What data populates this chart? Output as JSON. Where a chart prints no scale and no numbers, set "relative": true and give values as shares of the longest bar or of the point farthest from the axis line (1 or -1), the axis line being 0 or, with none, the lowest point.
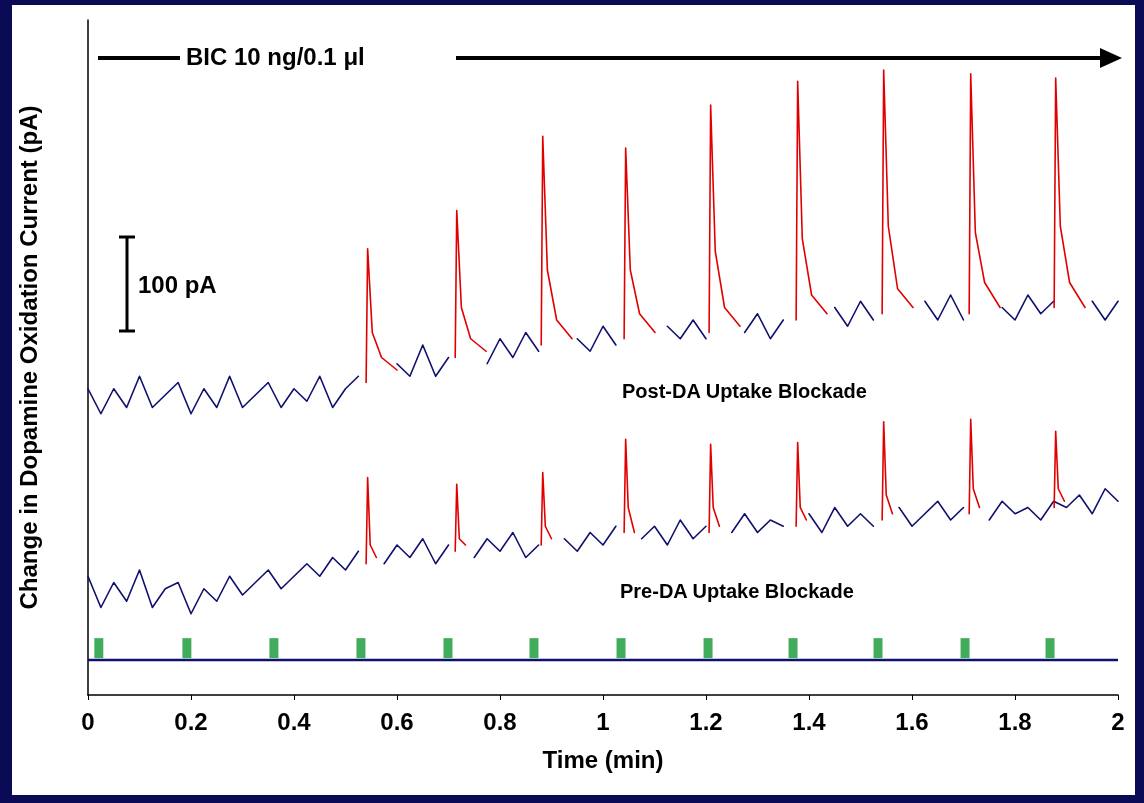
{
  "chart_data": {
    "type": "line",
    "relative": true,
    "xlabel": "Time (min)",
    "ylabel": "Change in Dopamine Oxidation Current (pA)",
    "xlim": [
      0,
      2
    ],
    "xticks": [
      0,
      0.2,
      0.4,
      0.6,
      0.8,
      1,
      1.2,
      1.4,
      1.6,
      1.8,
      2
    ],
    "marker": "none",
    "annotations": [
      "BIC 10 ng/0.1 μl",
      "100 pA"
    ],
    "ref_lines": [
      {
        "axis": "y",
        "value": 0.056,
        "color": "#10106e"
      }
    ],
    "x": [
      0,
      0.025,
      0.05,
      0.075,
      0.1,
      0.125,
      0.15,
      0.175,
      0.2,
      0.225,
      0.25,
      0.275,
      0.3,
      0.325,
      0.35,
      0.375,
      0.4,
      0.425,
      0.45,
      0.475,
      0.5,
      0.525,
      0.55,
      0.575,
      0.6,
      0.625,
      0.65,
      0.675,
      0.7,
      0.725,
      0.75,
      0.775,
      0.8,
      0.825,
      0.85,
      0.875,
      0.9,
      0.925,
      0.95,
      0.975,
      1,
      1.025,
      1.05,
      1.075,
      1.1,
      1.125,
      1.15,
      1.175,
      1.2,
      1.225,
      1.25,
      1.275,
      1.3,
      1.325,
      1.35,
      1.375,
      1.4,
      1.425,
      1.45,
      1.475,
      1.5,
      1.525,
      1.55,
      1.575,
      1.6,
      1.625,
      1.65,
      1.675,
      1.7,
      1.725,
      1.75,
      1.775,
      1.8,
      1.825,
      1.85,
      1.875,
      1.9,
      1.925,
      1.95,
      1.975,
      2
    ],
    "series": [
      {
        "name": "Post-DA Uptake Blockade",
        "color": "#10106e",
        "values": [
          0.49,
          0.45,
          0.49,
          0.46,
          0.51,
          0.46,
          0.48,
          0.5,
          0.45,
          0.49,
          0.46,
          0.51,
          0.46,
          0.48,
          0.5,
          0.46,
          0.49,
          0.47,
          0.51,
          0.46,
          0.49,
          0.51,
          null,
          null,
          0.53,
          0.51,
          0.56,
          0.51,
          0.54,
          null,
          null,
          0.53,
          0.57,
          0.54,
          0.58,
          0.55,
          null,
          null,
          0.57,
          0.55,
          0.59,
          0.56,
          null,
          null,
          null,
          0.59,
          0.57,
          0.6,
          0.57,
          null,
          null,
          0.58,
          0.61,
          0.57,
          0.6,
          null,
          null,
          null,
          0.62,
          0.59,
          0.63,
          0.6,
          null,
          null,
          null,
          0.63,
          0.6,
          0.64,
          0.6,
          null,
          null,
          0.62,
          0.6,
          0.64,
          0.61,
          0.63,
          null,
          null,
          0.63,
          0.6,
          0.63
        ]
      },
      {
        "color": "#e00000",
        "x": [
          0.54,
          0.543,
          0.552,
          0.57,
          0.6,
          0.62,
          0.713,
          0.716,
          0.725,
          0.743,
          0.773,
          0.79,
          0.88,
          0.883,
          0.892,
          0.91,
          0.94,
          0.96,
          1.041,
          1.044,
          1.053,
          1.071,
          1.101,
          1.12,
          1.206,
          1.209,
          1.218,
          1.236,
          1.266,
          1.285,
          1.375,
          1.378,
          1.387,
          1.405,
          1.435,
          1.455,
          1.542,
          1.545,
          1.554,
          1.572,
          1.602,
          1.62,
          1.711,
          1.714,
          1.723,
          1.741,
          1.771,
          1.79,
          1.876,
          1.879,
          1.888,
          1.906,
          1.936
        ],
        "values": [
          0.5,
          0.714,
          0.58,
          0.54,
          0.52,
          null,
          0.54,
          0.775,
          0.62,
          0.57,
          0.55,
          null,
          0.56,
          0.894,
          0.68,
          0.6,
          0.57,
          null,
          0.57,
          0.875,
          0.68,
          0.61,
          0.58,
          null,
          0.58,
          0.944,
          0.71,
          0.62,
          0.59,
          null,
          0.6,
          0.982,
          0.73,
          0.64,
          0.61,
          null,
          0.61,
          1,
          0.75,
          0.65,
          0.62,
          null,
          0.61,
          0.994,
          0.74,
          0.66,
          0.62,
          null,
          0.62,
          0.987,
          0.75,
          0.66,
          0.62
        ]
      },
      {
        "name": "Pre-DA Uptake Blockade",
        "color": "#10106e",
        "values": [
          0.19,
          0.14,
          0.18,
          0.15,
          0.2,
          0.14,
          0.17,
          0.18,
          0.13,
          0.17,
          0.15,
          0.19,
          0.16,
          0.18,
          0.2,
          0.17,
          0.19,
          0.21,
          0.19,
          0.22,
          0.2,
          0.23,
          null,
          0.21,
          0.24,
          0.22,
          0.25,
          0.21,
          0.24,
          null,
          0.22,
          0.25,
          0.23,
          0.26,
          0.22,
          0.24,
          null,
          0.25,
          0.23,
          0.26,
          0.24,
          0.27,
          null,
          0.25,
          0.27,
          0.24,
          0.28,
          0.25,
          0.27,
          null,
          0.26,
          0.29,
          0.26,
          0.28,
          0.27,
          null,
          0.29,
          0.26,
          0.3,
          0.27,
          0.29,
          0.27,
          null,
          0.3,
          0.27,
          0.29,
          0.31,
          0.28,
          0.3,
          null,
          0.28,
          0.31,
          0.29,
          0.3,
          0.28,
          0.31,
          0.3,
          0.32,
          0.29,
          0.33,
          0.31
        ]
      },
      {
        "color": "#e00000",
        "x": [
          0.54,
          0.543,
          0.548,
          0.56,
          0.58,
          0.713,
          0.716,
          0.721,
          0.733,
          0.75,
          0.88,
          0.883,
          0.888,
          0.9,
          0.92,
          1.041,
          1.044,
          1.049,
          1.061,
          1.08,
          1.206,
          1.209,
          1.214,
          1.226,
          1.245,
          1.375,
          1.378,
          1.383,
          1.395,
          1.415,
          1.542,
          1.545,
          1.55,
          1.562,
          1.58,
          1.711,
          1.714,
          1.719,
          1.731,
          1.75,
          1.876,
          1.879,
          1.884,
          1.896
        ],
        "values": [
          0.21,
          0.348,
          0.24,
          0.22,
          null,
          0.23,
          0.337,
          0.25,
          0.24,
          null,
          0.24,
          0.356,
          0.27,
          0.25,
          null,
          0.26,
          0.409,
          0.3,
          0.26,
          null,
          0.26,
          0.401,
          0.3,
          0.27,
          null,
          0.27,
          0.404,
          0.3,
          0.28,
          null,
          0.28,
          0.437,
          0.32,
          0.29,
          null,
          0.29,
          0.441,
          0.33,
          0.3,
          null,
          0.3,
          0.422,
          0.33,
          0.31
        ]
      },
      {
        "type": "scatter",
        "color": "#119933",
        "marker": "square",
        "x": [
          0.021,
          0.192,
          0.361,
          0.53,
          0.699,
          0.866,
          1.035,
          1.204,
          1.369,
          1.534,
          1.703,
          1.868
        ],
        "values": [
          0.075,
          0.075,
          0.075,
          0.075,
          0.075,
          0.075,
          0.075,
          0.075,
          0.075,
          0.075,
          0.075,
          0.075
        ]
      }
    ]
  }
}
